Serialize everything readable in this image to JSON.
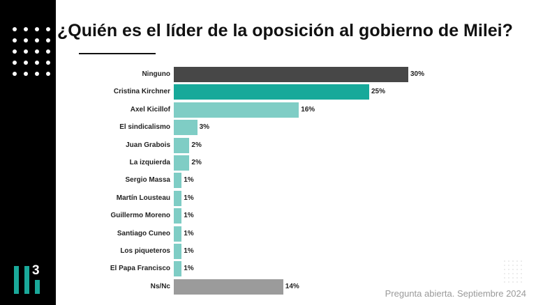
{
  "title": "¿Quién es el líder de la oposición al gobierno de Milei?",
  "logo": {
    "text": "3"
  },
  "footer": "Pregunta abierta. Septiembre 2024",
  "colors": {
    "dark": "#474747",
    "highlight": "#17a99a",
    "light": "#7fcdc5",
    "nsnc": "#9b9b9b"
  },
  "chart_data": {
    "type": "bar",
    "orientation": "horizontal",
    "title": "¿Quién es el líder de la oposición al gobierno de Milei?",
    "categories": [
      "Ninguno",
      "Cristina Kirchner",
      "Axel Kicillof",
      "El sindicalismo",
      "Juan Grabois",
      "La izquierda",
      "Sergio Massa",
      "Martín Lousteau",
      "Guillermo Moreno",
      "Santiago Cuneo",
      "Los piqueteros",
      "El Papa Francisco",
      "Ns/Nc"
    ],
    "values": [
      30,
      25,
      16,
      3,
      2,
      2,
      1,
      1,
      1,
      1,
      1,
      1,
      14
    ],
    "labels": [
      "30%",
      "25%",
      "16%",
      "3%",
      "2%",
      "2%",
      "1%",
      "1%",
      "1%",
      "1%",
      "1%",
      "1%",
      "14%"
    ],
    "color_keys": [
      "dark",
      "highlight",
      "light",
      "light",
      "light",
      "light",
      "light",
      "light",
      "light",
      "light",
      "light",
      "light",
      "nsnc"
    ],
    "xlim": [
      0,
      30
    ],
    "unit": "%",
    "grid": false
  }
}
